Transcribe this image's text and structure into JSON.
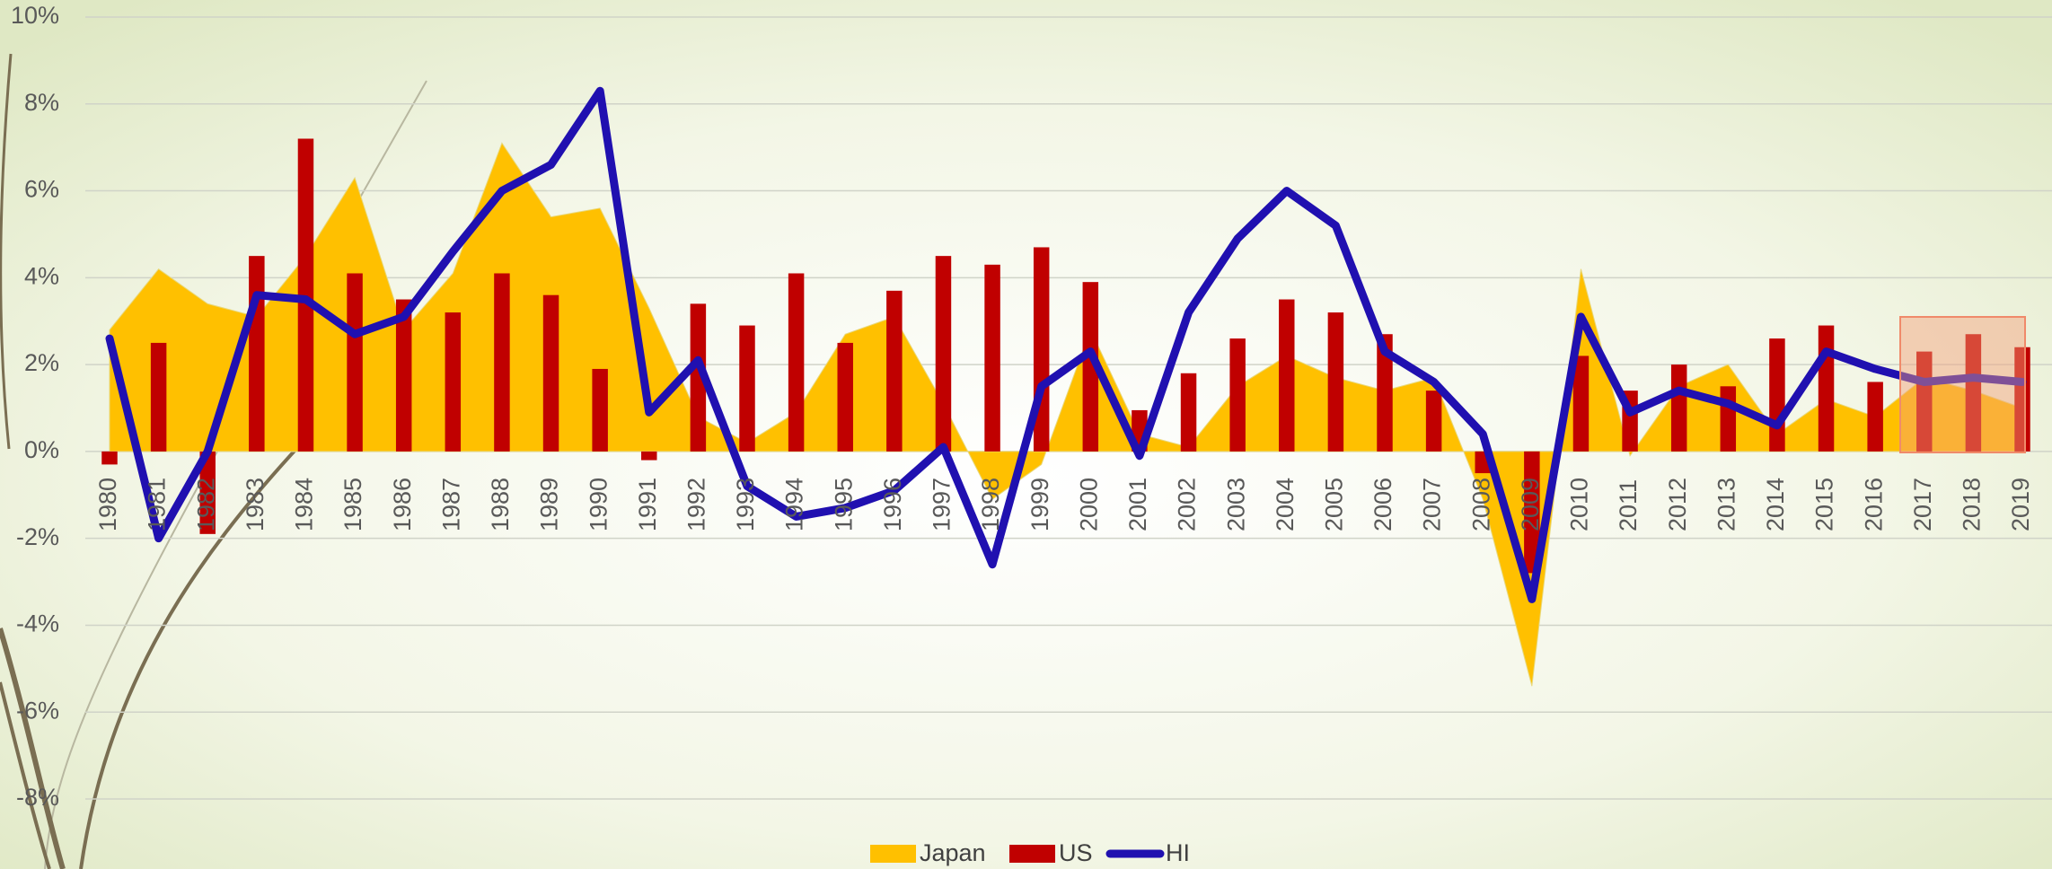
{
  "chart_data": {
    "type": "combo",
    "categories": [
      "1980",
      "1981",
      "1982",
      "1983",
      "1984",
      "1985",
      "1986",
      "1987",
      "1988",
      "1989",
      "1990",
      "1991",
      "1992",
      "1993",
      "1994",
      "1995",
      "1996",
      "1997",
      "1998",
      "1999",
      "2000",
      "2001",
      "2002",
      "2003",
      "2004",
      "2005",
      "2006",
      "2007",
      "2008",
      "2009",
      "2010",
      "2011",
      "2012",
      "2013",
      "2014",
      "2015",
      "2016",
      "2017",
      "2018",
      "2019"
    ],
    "series": [
      {
        "name": "Japan",
        "type": "area",
        "color": "#FFC000",
        "values": [
          2.8,
          4.2,
          3.4,
          3.1,
          4.5,
          6.3,
          2.8,
          4.1,
          7.1,
          5.4,
          5.6,
          3.3,
          0.8,
          0.2,
          0.9,
          2.7,
          3.1,
          1.1,
          -1.1,
          -0.3,
          2.8,
          0.4,
          0.1,
          1.5,
          2.2,
          1.7,
          1.4,
          1.7,
          -1.1,
          -5.4,
          4.2,
          -0.1,
          1.5,
          2.0,
          0.4,
          1.2,
          0.8,
          1.7,
          1.4,
          1.0
        ]
      },
      {
        "name": "US",
        "type": "bar",
        "color": "#C00000",
        "values": [
          -0.3,
          2.5,
          -1.9,
          4.5,
          7.2,
          4.1,
          3.5,
          3.2,
          4.1,
          3.6,
          1.9,
          -0.2,
          3.4,
          2.9,
          4.1,
          2.5,
          3.7,
          4.5,
          4.3,
          4.7,
          3.9,
          0.95,
          1.8,
          2.6,
          3.5,
          3.2,
          2.7,
          1.4,
          -0.5,
          -2.8,
          2.2,
          1.4,
          2.0,
          1.5,
          2.6,
          2.9,
          1.6,
          2.3,
          2.7,
          2.4
        ]
      },
      {
        "name": "HI",
        "type": "line",
        "color": "#2010B0",
        "values": [
          2.6,
          -2.0,
          0.0,
          3.6,
          3.5,
          2.7,
          3.1,
          4.6,
          6.0,
          6.6,
          8.3,
          0.9,
          2.1,
          -0.8,
          -1.5,
          -1.3,
          -0.9,
          0.1,
          -2.6,
          1.5,
          2.3,
          -0.1,
          3.2,
          4.9,
          6.0,
          5.2,
          2.3,
          1.6,
          0.4,
          -3.4,
          3.1,
          0.9,
          1.4,
          1.1,
          0.6,
          2.3,
          1.9,
          1.6,
          1.7,
          1.6
        ]
      }
    ],
    "ylim": [
      -8,
      10
    ],
    "yticks": [
      {
        "value": -8,
        "label": "-8%"
      },
      {
        "value": -6,
        "label": "-6%"
      },
      {
        "value": -4,
        "label": "-4%"
      },
      {
        "value": -2,
        "label": "-2%"
      },
      {
        "value": 0,
        "label": "0%"
      },
      {
        "value": 2,
        "label": "2%"
      },
      {
        "value": 4,
        "label": "4%"
      },
      {
        "value": 6,
        "label": "6%"
      },
      {
        "value": 8,
        "label": "8%"
      },
      {
        "value": 10,
        "label": "10%"
      }
    ],
    "grid": true,
    "legend": "bottom"
  }
}
